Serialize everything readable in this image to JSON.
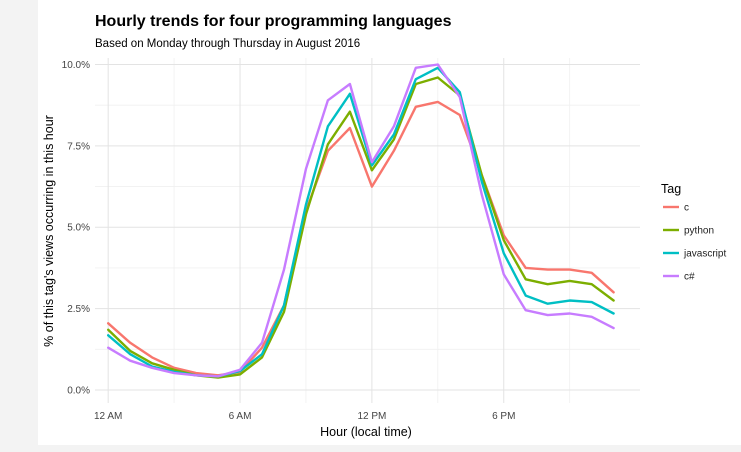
{
  "chart_data": {
    "type": "line",
    "title": "Hourly trends for four programming languages",
    "subtitle": "Based on Monday through Thursday in August 2016",
    "xlabel": "Hour (local time)",
    "ylabel": "% of this tag's views occurring in this hour",
    "x": [
      0,
      1,
      2,
      3,
      4,
      5,
      6,
      7,
      8,
      9,
      10,
      11,
      12,
      13,
      14,
      15,
      16,
      17,
      18,
      19,
      20,
      21,
      22,
      23
    ],
    "x_ticks": [
      0,
      6,
      12,
      18
    ],
    "x_tick_labels": [
      "12 AM",
      "6 AM",
      "12 PM",
      "6 PM"
    ],
    "xlim": [
      -0.6,
      24.2
    ],
    "ylim": [
      -0.4,
      10.2
    ],
    "y_ticks": [
      0,
      2.5,
      5,
      7.5,
      10
    ],
    "y_tick_labels": [
      "0.0%",
      "2.5%",
      "5.0%",
      "7.5%",
      "10.0%"
    ],
    "grid": true,
    "legend_title": "Tag",
    "legend_position": "right",
    "series": [
      {
        "name": "c",
        "color": "#F8766D",
        "values": [
          2.05,
          1.45,
          1.0,
          0.68,
          0.52,
          0.45,
          0.55,
          1.3,
          2.6,
          5.5,
          7.35,
          8.05,
          6.25,
          7.35,
          8.7,
          8.85,
          8.45,
          6.6,
          4.75,
          3.75,
          3.7,
          3.7,
          3.6,
          3.0
        ]
      },
      {
        "name": "python",
        "color": "#7CAE00",
        "values": [
          1.85,
          1.2,
          0.82,
          0.62,
          0.45,
          0.38,
          0.48,
          1.0,
          2.4,
          5.4,
          7.55,
          8.55,
          6.75,
          7.7,
          9.4,
          9.6,
          9.05,
          6.6,
          4.6,
          3.4,
          3.25,
          3.35,
          3.25,
          2.75
        ]
      },
      {
        "name": "javascript",
        "color": "#00BFC4",
        "values": [
          1.68,
          1.1,
          0.72,
          0.56,
          0.45,
          0.42,
          0.58,
          1.1,
          2.6,
          5.7,
          8.1,
          9.1,
          6.9,
          7.85,
          9.55,
          9.9,
          9.15,
          6.4,
          4.2,
          2.9,
          2.65,
          2.75,
          2.7,
          2.35
        ]
      },
      {
        "name": "c#",
        "color": "#C77CFF",
        "values": [
          1.3,
          0.9,
          0.68,
          0.52,
          0.45,
          0.42,
          0.62,
          1.45,
          3.7,
          6.8,
          8.9,
          9.4,
          7.0,
          8.1,
          9.9,
          10.0,
          9.0,
          6.0,
          3.55,
          2.45,
          2.3,
          2.35,
          2.25,
          1.9
        ]
      }
    ]
  }
}
